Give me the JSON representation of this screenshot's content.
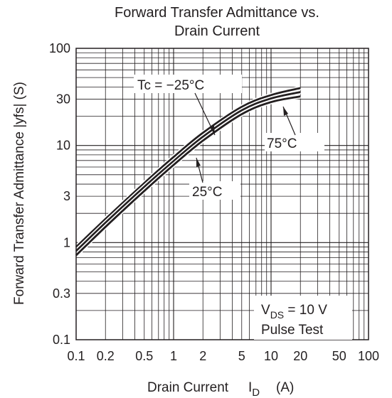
{
  "chart_data": {
    "type": "line",
    "title_lines": [
      "Forward Transfer Admittance vs.",
      "Drain Current"
    ],
    "xlabel": "Drain Current",
    "xlabel_symbol": "I",
    "xlabel_symbol_sub": "D",
    "xlabel_unit": "(A)",
    "ylabel": "Forward Transfer Admittance |yfs| (S)",
    "x_scale": "log",
    "y_scale": "log",
    "xlim": [
      0.1,
      100
    ],
    "ylim": [
      0.1,
      100
    ],
    "grid": true,
    "x_ticks": [
      {
        "value": 0.1,
        "label": "0.1"
      },
      {
        "value": 0.2,
        "label": "0.2"
      },
      {
        "value": 0.5,
        "label": "0.5"
      },
      {
        "value": 1,
        "label": "1"
      },
      {
        "value": 2,
        "label": "2"
      },
      {
        "value": 5,
        "label": "5"
      },
      {
        "value": 10,
        "label": "10"
      },
      {
        "value": 20,
        "label": "20"
      },
      {
        "value": 50,
        "label": "50"
      },
      {
        "value": 100,
        "label": "100"
      }
    ],
    "y_ticks": [
      {
        "value": 0.1,
        "label": "0.1"
      },
      {
        "value": 0.3,
        "label": "0.3"
      },
      {
        "value": 1,
        "label": "1"
      },
      {
        "value": 3,
        "label": "3"
      },
      {
        "value": 10,
        "label": "10"
      },
      {
        "value": 30,
        "label": "30"
      },
      {
        "value": 100,
        "label": "100"
      }
    ],
    "series": [
      {
        "name": "Tc = −25°C",
        "x": [
          0.1,
          0.2,
          0.5,
          1,
          2,
          5,
          10,
          20
        ],
        "y": [
          0.9,
          1.75,
          4.1,
          7.6,
          13.5,
          25,
          33,
          39
        ]
      },
      {
        "name": "25°C",
        "x": [
          0.1,
          0.2,
          0.5,
          1,
          2,
          5,
          10,
          20
        ],
        "y": [
          0.82,
          1.6,
          3.75,
          6.9,
          12.3,
          23,
          30.5,
          35.5
        ]
      },
      {
        "name": "75°C",
        "x": [
          0.1,
          0.2,
          0.5,
          1,
          2,
          5,
          10,
          20
        ],
        "y": [
          0.74,
          1.45,
          3.4,
          6.3,
          11.2,
          21,
          28,
          32
        ]
      }
    ],
    "conditions": {
      "vds_main": "V",
      "vds_sub": "DS",
      "vds_value": " = 10 V",
      "pulse": "Pulse Test"
    }
  }
}
